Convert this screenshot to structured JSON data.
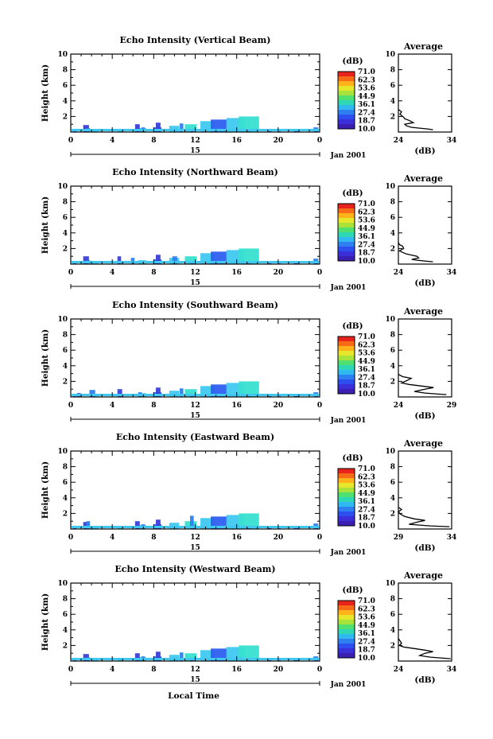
{
  "figure": {
    "panels": [
      {
        "title": "Echo Intensity (Vertical Beam)",
        "profile_xticks": [
          "24",
          "34"
        ],
        "profile": [
          [
            30.5,
            0.3
          ],
          [
            29.5,
            0.4
          ],
          [
            28.0,
            0.5
          ],
          [
            26.5,
            0.6
          ],
          [
            25.5,
            0.8
          ],
          [
            25.2,
            1.0
          ],
          [
            26.8,
            1.2
          ],
          [
            26.0,
            1.5
          ],
          [
            25.2,
            1.7
          ],
          [
            25.0,
            1.9
          ],
          [
            24.3,
            2.3
          ],
          [
            24.6,
            2.6
          ],
          [
            24.0,
            2.9
          ]
        ],
        "echo": [
          {
            "c": [
              "#2e5ff0",
              "#40c8f0",
              "#38e0d0",
              "#40c8f0"
            ],
            "s": [
              [
                0.2,
                0.3,
                0.2
              ],
              [
                2.0,
                0.4,
                0.5
              ],
              [
                4.5,
                0.3,
                0.4
              ],
              [
                6.5,
                0.5,
                0.6
              ],
              [
                8.0,
                0.6,
                0.6
              ],
              [
                9.5,
                0.8,
                0.8
              ],
              [
                11.0,
                1.0,
                1.0
              ],
              [
                12.5,
                1.4,
                1.2
              ],
              [
                13.5,
                1.6,
                1.4
              ],
              [
                15.0,
                1.8,
                1.6
              ],
              [
                16.2,
                2.0,
                1.8
              ],
              [
                16.4,
                0.2,
                0.2
              ]
            ]
          },
          {
            "c": [
              "#3a3fd8",
              "#2e80f0"
            ],
            "s": [
              [
                1.2,
                0.9,
                0.4
              ],
              [
                1.5,
                0.5,
                0.2
              ],
              [
                6.2,
                1.0,
                0.3
              ],
              [
                6.8,
                0.6,
                0.2
              ],
              [
                8.2,
                1.2,
                0.3
              ],
              [
                10.5,
                1.1,
                0.2
              ],
              [
                11.5,
                0.2,
                0.2
              ],
              [
                17.0,
                0.2,
                0.2
              ],
              [
                19.0,
                0.3,
                0.2
              ],
              [
                20.0,
                0.2,
                0.1
              ],
              [
                21.5,
                0.4,
                0.3
              ],
              [
                23.4,
                0.6,
                0.3
              ],
              [
                23.6,
                0.2,
                0.1
              ]
            ]
          }
        ]
      },
      {
        "title": "Echo Intensity (Northward Beam)",
        "profile_xticks": [
          "24",
          "34"
        ],
        "profile": [
          [
            30.5,
            0.3
          ],
          [
            29.0,
            0.4
          ],
          [
            27.5,
            0.5
          ],
          [
            26.5,
            0.6
          ],
          [
            27.8,
            0.8
          ],
          [
            27.5,
            1.0
          ],
          [
            26.2,
            1.2
          ],
          [
            25.5,
            1.3
          ],
          [
            24.8,
            1.5
          ],
          [
            24.2,
            1.7
          ],
          [
            25.0,
            2.0
          ],
          [
            24.8,
            2.3
          ],
          [
            24.2,
            2.5
          ],
          [
            24.0,
            2.8
          ]
        ],
        "echo": [
          {
            "c": [
              "#2e5ff0",
              "#40c8f0",
              "#38e0d0",
              "#40c8f0"
            ],
            "s": [
              [
                0.2,
                0.3,
                0.2
              ],
              [
                2.0,
                0.4,
                0.5
              ],
              [
                4.5,
                0.3,
                0.4
              ],
              [
                6.5,
                0.5,
                0.6
              ],
              [
                8.0,
                0.6,
                0.6
              ],
              [
                9.5,
                0.8,
                0.8
              ],
              [
                11.0,
                1.0,
                1.0
              ],
              [
                12.5,
                1.4,
                1.2
              ],
              [
                13.5,
                1.6,
                1.4
              ],
              [
                15.0,
                1.8,
                1.6
              ],
              [
                16.2,
                2.0,
                1.8
              ],
              [
                16.4,
                0.2,
                0.2
              ]
            ]
          },
          {
            "c": [
              "#3a3fd8",
              "#2e80f0"
            ],
            "s": [
              [
                1.2,
                1.0,
                0.4
              ],
              [
                1.5,
                0.5,
                0.2
              ],
              [
                4.5,
                1.0,
                0.2
              ],
              [
                5.8,
                0.8,
                0.2
              ],
              [
                8.2,
                1.2,
                0.3
              ],
              [
                9.8,
                1.0,
                0.3
              ],
              [
                11.5,
                0.2,
                0.2
              ],
              [
                17.0,
                0.2,
                0.2
              ],
              [
                19.0,
                0.3,
                0.2
              ],
              [
                20.0,
                0.2,
                0.1
              ],
              [
                21.5,
                0.4,
                0.3
              ],
              [
                23.4,
                0.7,
                0.3
              ],
              [
                23.6,
                0.2,
                0.1
              ]
            ]
          }
        ]
      },
      {
        "title": "Echo Intensity (Southward Beam)",
        "profile_xticks": [
          "24",
          "29"
        ],
        "profile": [
          [
            28.5,
            0.3
          ],
          [
            27.5,
            0.4
          ],
          [
            26.5,
            0.5
          ],
          [
            25.5,
            0.7
          ],
          [
            26.5,
            1.0
          ],
          [
            27.3,
            1.2
          ],
          [
            26.2,
            1.4
          ],
          [
            25.0,
            1.6
          ],
          [
            24.3,
            1.8
          ],
          [
            24.8,
            2.1
          ],
          [
            25.2,
            2.4
          ],
          [
            24.4,
            2.6
          ],
          [
            24.0,
            2.9
          ]
        ],
        "echo": [
          {
            "c": [
              "#2e5ff0",
              "#40c8f0",
              "#38e0d0",
              "#40c8f0"
            ],
            "s": [
              [
                0.2,
                0.3,
                0.2
              ],
              [
                2.0,
                0.4,
                0.5
              ],
              [
                4.5,
                0.3,
                0.4
              ],
              [
                6.5,
                0.5,
                0.6
              ],
              [
                8.0,
                0.6,
                0.6
              ],
              [
                9.5,
                0.8,
                0.8
              ],
              [
                11.0,
                1.0,
                1.0
              ],
              [
                12.5,
                1.4,
                1.2
              ],
              [
                13.5,
                1.6,
                1.4
              ],
              [
                15.0,
                1.8,
                1.6
              ],
              [
                16.2,
                2.0,
                1.8
              ],
              [
                16.4,
                0.2,
                0.2
              ]
            ]
          },
          {
            "c": [
              "#3a3fd8",
              "#2e80f0"
            ],
            "s": [
              [
                0.6,
                0.5,
                0.2
              ],
              [
                1.8,
                0.9,
                0.4
              ],
              [
                4.5,
                1.0,
                0.3
              ],
              [
                6.5,
                0.6,
                0.2
              ],
              [
                8.2,
                1.2,
                0.3
              ],
              [
                10.5,
                1.1,
                0.2
              ],
              [
                11.5,
                0.2,
                0.2
              ],
              [
                17.0,
                0.2,
                0.2
              ],
              [
                19.0,
                0.3,
                0.2
              ],
              [
                20.0,
                0.2,
                0.1
              ],
              [
                21.5,
                0.4,
                0.3
              ],
              [
                23.4,
                0.6,
                0.3
              ],
              [
                23.6,
                0.2,
                0.1
              ]
            ]
          }
        ]
      },
      {
        "title": "Echo Intensity (Eastward Beam)",
        "profile_xticks": [
          "29",
          "34"
        ],
        "profile": [
          [
            33.8,
            0.3
          ],
          [
            32.0,
            0.4
          ],
          [
            31.0,
            0.5
          ],
          [
            30.0,
            0.6
          ],
          [
            30.8,
            0.9
          ],
          [
            31.5,
            1.1
          ],
          [
            30.5,
            1.3
          ],
          [
            29.6,
            1.6
          ],
          [
            29.2,
            1.9
          ],
          [
            29.0,
            2.2
          ],
          [
            29.3,
            2.5
          ],
          [
            29.0,
            2.8
          ]
        ],
        "echo": [
          {
            "c": [
              "#2e5ff0",
              "#40c8f0",
              "#38e0d0",
              "#40c8f0"
            ],
            "s": [
              [
                0.2,
                0.3,
                0.2
              ],
              [
                2.0,
                0.4,
                0.5
              ],
              [
                4.5,
                0.3,
                0.4
              ],
              [
                6.5,
                0.5,
                0.6
              ],
              [
                8.0,
                0.6,
                0.6
              ],
              [
                9.5,
                0.8,
                0.8
              ],
              [
                11.0,
                1.0,
                1.0
              ],
              [
                12.5,
                1.4,
                1.2
              ],
              [
                13.5,
                1.6,
                1.4
              ],
              [
                15.0,
                1.8,
                1.6
              ],
              [
                16.2,
                2.0,
                1.8
              ],
              [
                16.4,
                0.2,
                0.2
              ]
            ]
          },
          {
            "c": [
              "#3a3fd8",
              "#2e80f0"
            ],
            "s": [
              [
                1.2,
                0.9,
                0.4
              ],
              [
                1.5,
                1.0,
                0.2
              ],
              [
                6.2,
                1.0,
                0.3
              ],
              [
                6.8,
                0.6,
                0.2
              ],
              [
                8.2,
                1.2,
                0.3
              ],
              [
                11.5,
                1.7,
                0.2
              ],
              [
                11.6,
                0.2,
                0.2
              ],
              [
                17.0,
                0.2,
                0.2
              ],
              [
                19.0,
                0.3,
                0.2
              ],
              [
                20.0,
                0.2,
                0.1
              ],
              [
                21.5,
                0.4,
                0.3
              ],
              [
                23.4,
                0.7,
                0.3
              ],
              [
                23.6,
                0.2,
                0.1
              ]
            ]
          }
        ]
      },
      {
        "title": "Echo Intensity (Westward Beam)",
        "profile_xticks": [
          "24",
          "34"
        ],
        "profile": [
          [
            33.8,
            0.3
          ],
          [
            32.0,
            0.4
          ],
          [
            30.0,
            0.5
          ],
          [
            28.0,
            0.7
          ],
          [
            29.0,
            1.0
          ],
          [
            30.5,
            1.2
          ],
          [
            29.0,
            1.4
          ],
          [
            27.0,
            1.6
          ],
          [
            25.0,
            1.8
          ],
          [
            24.2,
            2.0
          ],
          [
            24.6,
            2.3
          ],
          [
            24.3,
            2.6
          ],
          [
            24.0,
            2.9
          ]
        ],
        "echo": [
          {
            "c": [
              "#2e5ff0",
              "#40c8f0",
              "#38e0d0",
              "#40c8f0"
            ],
            "s": [
              [
                0.2,
                0.3,
                0.2
              ],
              [
                2.0,
                0.4,
                0.5
              ],
              [
                4.5,
                0.3,
                0.4
              ],
              [
                6.5,
                0.5,
                0.6
              ],
              [
                8.0,
                0.6,
                0.6
              ],
              [
                9.5,
                0.8,
                0.8
              ],
              [
                11.0,
                1.0,
                1.0
              ],
              [
                12.5,
                1.4,
                1.2
              ],
              [
                13.5,
                1.6,
                1.4
              ],
              [
                15.0,
                1.8,
                1.6
              ],
              [
                16.2,
                2.0,
                1.8
              ],
              [
                16.4,
                0.2,
                0.2
              ]
            ]
          },
          {
            "c": [
              "#3a3fd8",
              "#2e80f0"
            ],
            "s": [
              [
                1.2,
                0.9,
                0.4
              ],
              [
                1.5,
                0.5,
                0.2
              ],
              [
                6.2,
                1.0,
                0.3
              ],
              [
                6.8,
                0.6,
                0.2
              ],
              [
                8.2,
                1.2,
                0.3
              ],
              [
                10.5,
                1.1,
                0.2
              ],
              [
                11.5,
                0.2,
                0.2
              ],
              [
                17.0,
                0.2,
                0.2
              ],
              [
                19.0,
                0.3,
                0.2
              ],
              [
                20.0,
                0.2,
                0.1
              ],
              [
                21.5,
                0.4,
                0.3
              ],
              [
                23.4,
                0.6,
                0.3
              ],
              [
                23.6,
                0.2,
                0.1
              ]
            ]
          }
        ]
      }
    ],
    "colorbar": {
      "unit": "(dB)",
      "ticks": [
        "71.0",
        "62.3",
        "53.6",
        "44.9",
        "36.1",
        "27.4",
        "18.7",
        "10.0"
      ],
      "colors": [
        "#e8231b",
        "#f76b16",
        "#ffb21a",
        "#e6e62a",
        "#a8e23a",
        "#4fe070",
        "#2fd8b4",
        "#30b8f0",
        "#2e80f0",
        "#2e4ff0",
        "#3a2fd8",
        "#3a1fb0"
      ]
    },
    "ylabel": "Height (km)",
    "yticks": [
      "2",
      "4",
      "6",
      "8",
      "10"
    ],
    "xticks": [
      "0",
      "4",
      "8",
      "12",
      "16",
      "20",
      "0"
    ],
    "date_day": "15",
    "date_month": "Jan 2001",
    "profile_title": "Average",
    "profile_xlabel": "(dB)",
    "xlabel": "Local Time"
  }
}
